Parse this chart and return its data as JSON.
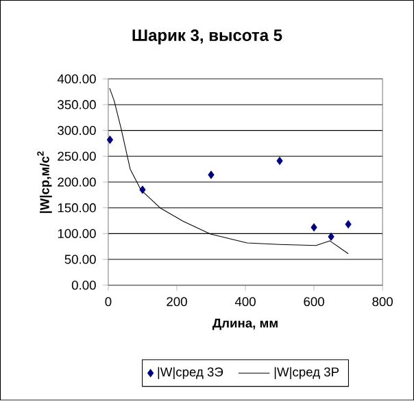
{
  "chart_data": {
    "type": "scatter",
    "title": "Шарик 3, высота 5",
    "xlabel": "Длина, мм",
    "ylabel": "|W|ср,м/с$^{2}$",
    "xlim": [
      0,
      800
    ],
    "xticks": [
      0,
      200,
      400,
      600,
      800
    ],
    "ylim": [
      0,
      400
    ],
    "yticks": [
      {
        "value": 0,
        "label": "0.00"
      },
      {
        "value": 50,
        "label": "50.00"
      },
      {
        "value": 100,
        "label": "100.00"
      },
      {
        "value": 150,
        "label": "150.00"
      },
      {
        "value": 200,
        "label": "200.00"
      },
      {
        "value": 250,
        "label": "250.00"
      },
      {
        "value": 300,
        "label": "300.00"
      },
      {
        "value": 350,
        "label": "350.00"
      },
      {
        "value": 400,
        "label": "400.00"
      }
    ],
    "grid": "y",
    "legend": "bottom",
    "series": [
      {
        "name": "|W|сред 3Э",
        "marker": "diamond",
        "color": "#000080",
        "x": [
          5,
          100,
          300,
          500,
          600,
          650,
          700
        ],
        "values": [
          282,
          185,
          214,
          241,
          112,
          94,
          118
        ]
      },
      {
        "name": "|W|сред 3Р",
        "type": "line",
        "marker": "none",
        "color": "#000000",
        "x": [
          4,
          17,
          37,
          64,
          95,
          151,
          218,
          298,
          405,
          499,
          606,
          646,
          700
        ],
        "values": [
          382,
          358,
          305,
          225,
          185,
          150,
          124,
          99,
          82,
          79,
          77,
          86,
          61
        ]
      }
    ]
  }
}
